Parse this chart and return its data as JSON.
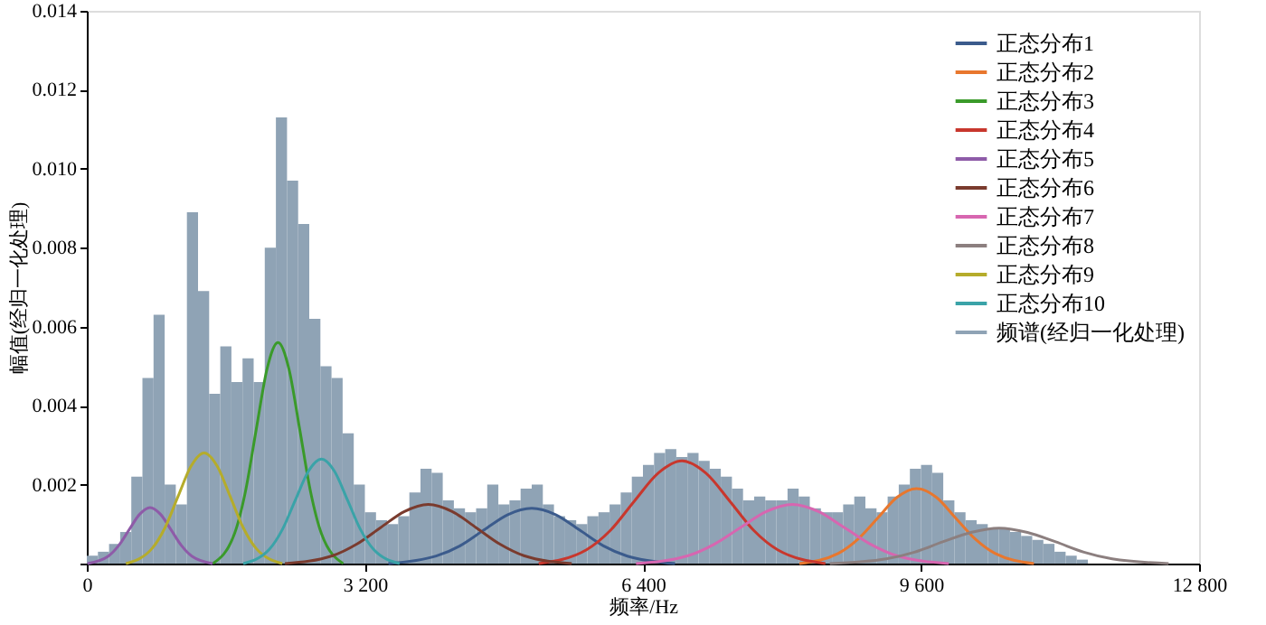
{
  "chart_data": {
    "type": "line",
    "xlabel": "频率/Hz",
    "ylabel": "幅值(经归一化处理)",
    "xlim": [
      0,
      12800
    ],
    "xticks": [
      {
        "value": 0,
        "label": "0"
      },
      {
        "value": 3200,
        "label": "3 200"
      },
      {
        "value": 6400,
        "label": "6 400"
      },
      {
        "value": 9600,
        "label": "9 600"
      },
      {
        "value": 12800,
        "label": "12 800"
      }
    ],
    "ylim": [
      0,
      0.014
    ],
    "yticks": [
      {
        "value": 0,
        "label": null
      },
      0.002,
      0.004,
      0.006,
      0.008,
      {
        "value": 0.01,
        "label": "0.010"
      },
      0.012,
      0.014
    ],
    "grid": false,
    "legend": "top right",
    "marker": "none",
    "line_style": "solid",
    "series": [
      {
        "name": "正态分布1",
        "color": "#3b5b8c",
        "x": [
          3470,
          4020,
          4295,
          4570,
          4845,
          5120,
          5395,
          5670,
          5945,
          6220,
          6770
        ],
        "values": [
          0,
          0.00019,
          0.00045,
          0.00085,
          0.00124,
          0.0014,
          0.00124,
          0.00085,
          0.00045,
          0.00019,
          0
        ]
      },
      {
        "name": "正态分布2",
        "color": "#e8772e",
        "x": [
          8200,
          8650,
          8875,
          9100,
          9325,
          9550,
          9775,
          10000,
          10225,
          10450,
          10900
        ],
        "values": [
          0,
          0.00026,
          0.00062,
          0.00115,
          0.00168,
          0.0019,
          0.00168,
          0.00115,
          0.00062,
          0.00026,
          0
        ]
      },
      {
        "name": "正态分布3",
        "color": "#3a9a2a",
        "x": [
          1450,
          1700,
          1825,
          1950,
          2075,
          2200,
          2325,
          2450,
          2575,
          2700,
          2950
        ],
        "values": [
          0,
          0.00076,
          0.00182,
          0.0034,
          0.00494,
          0.0056,
          0.00494,
          0.0034,
          0.00182,
          0.00076,
          0
        ]
      },
      {
        "name": "正态分布4",
        "color": "#c8372d",
        "x": [
          5200,
          5750,
          6025,
          6300,
          6575,
          6850,
          7125,
          7400,
          7675,
          7950,
          8500
        ],
        "values": [
          0,
          0.00035,
          0.00084,
          0.00158,
          0.00229,
          0.0026,
          0.00229,
          0.00158,
          0.00084,
          0.00035,
          0
        ]
      },
      {
        "name": "正态分布5",
        "color": "#8e5ba8",
        "x": [
          8,
          248,
          368,
          488,
          608,
          728,
          848,
          968,
          1088,
          1208,
          1448
        ],
        "values": [
          0,
          0.00019,
          0.00046,
          0.00086,
          0.00125,
          0.00142,
          0.00125,
          0.00086,
          0.00046,
          0.00019,
          0
        ]
      },
      {
        "name": "正态分布6",
        "color": "#7a3b2e",
        "x": [
          2280,
          2830,
          3105,
          3380,
          3655,
          3930,
          4205,
          4480,
          4755,
          5030,
          5580
        ],
        "values": [
          0,
          0.0002,
          0.00049,
          0.00091,
          0.00132,
          0.0015,
          0.00132,
          0.00091,
          0.00049,
          0.0002,
          0
        ]
      },
      {
        "name": "正态分布7",
        "color": "#d766b0",
        "x": [
          6320,
          6920,
          7220,
          7520,
          7820,
          8120,
          8420,
          8720,
          9020,
          9320,
          9920
        ],
        "values": [
          0,
          0.0002,
          0.00049,
          0.00091,
          0.00132,
          0.0015,
          0.00132,
          0.00091,
          0.00049,
          0.0002,
          0
        ]
      },
      {
        "name": "正态分布8",
        "color": "#8c7f7f",
        "x": [
          8550,
          9200,
          9525,
          9850,
          10175,
          10500,
          10825,
          11150,
          11475,
          11800,
          12450
        ],
        "values": [
          0,
          0.00012,
          0.00029,
          0.00055,
          0.00079,
          0.0009,
          0.00079,
          0.00055,
          0.00029,
          0.00012,
          0
        ]
      },
      {
        "name": "正态分布9",
        "color": "#b5ac2b",
        "x": [
          450,
          750,
          900,
          1050,
          1200,
          1350,
          1500,
          1650,
          1800,
          1950,
          2250
        ],
        "values": [
          0,
          0.00038,
          0.00091,
          0.0017,
          0.00247,
          0.0028,
          0.00247,
          0.0017,
          0.00091,
          0.00038,
          0
        ]
      },
      {
        "name": "正态分布10",
        "color": "#3aa3a8",
        "x": [
          1800,
          2100,
          2250,
          2400,
          2550,
          2700,
          2850,
          3000,
          3150,
          3300,
          3600
        ],
        "values": [
          0,
          0.00036,
          0.00086,
          0.00161,
          0.00234,
          0.00265,
          0.00234,
          0.00161,
          0.00086,
          0.00036,
          0
        ]
      },
      {
        "name": "频谱(经归一化处理)",
        "type": "histogram",
        "color": "#8fa3b5",
        "bins": [
          0,
          128,
          256,
          384,
          512,
          640,
          768,
          896,
          1024,
          1152,
          1280,
          1408,
          1536,
          1664,
          1792,
          1920,
          2048,
          2176,
          2304,
          2432,
          2560,
          2688,
          2816,
          2944,
          3072,
          3200,
          3328,
          3456,
          3584,
          3712,
          3840,
          3968,
          4096,
          4224,
          4352,
          4480,
          4608,
          4736,
          4864,
          4992,
          5120,
          5248,
          5376,
          5504,
          5632,
          5760,
          5888,
          6016,
          6144,
          6272,
          6400,
          6528,
          6656,
          6784,
          6912,
          7040,
          7168,
          7296,
          7424,
          7552,
          7680,
          7808,
          7936,
          8064,
          8192,
          8320,
          8448,
          8576,
          8704,
          8832,
          8960,
          9088,
          9216,
          9344,
          9472,
          9600,
          9728,
          9856,
          9984,
          10112,
          10240,
          10368,
          10496,
          10624,
          10752,
          10880,
          11008,
          11136,
          11264,
          11392,
          11520,
          11648,
          11776,
          11904,
          12032,
          12160,
          12288,
          12416,
          12544,
          12672,
          12800
        ],
        "values": [
          0.0002,
          0.0003,
          0.0005,
          0.0008,
          0.0022,
          0.0047,
          0.0063,
          0.002,
          0.0015,
          0.0089,
          0.0069,
          0.0043,
          0.0055,
          0.0046,
          0.0052,
          0.0046,
          0.008,
          0.0113,
          0.0097,
          0.0086,
          0.0062,
          0.005,
          0.0047,
          0.0033,
          0.002,
          0.0013,
          0.0011,
          0.001,
          0.0012,
          0.0018,
          0.0024,
          0.0023,
          0.0016,
          0.0014,
          0.0013,
          0.0014,
          0.002,
          0.0015,
          0.0016,
          0.0019,
          0.002,
          0.0015,
          0.0012,
          0.0011,
          0.001,
          0.0012,
          0.0013,
          0.0015,
          0.0018,
          0.0022,
          0.0025,
          0.0028,
          0.0029,
          0.0027,
          0.0028,
          0.0026,
          0.0024,
          0.0022,
          0.0019,
          0.0016,
          0.0017,
          0.0016,
          0.0016,
          0.0019,
          0.0017,
          0.0014,
          0.0013,
          0.0013,
          0.0015,
          0.0017,
          0.0014,
          0.0013,
          0.0017,
          0.002,
          0.0024,
          0.0025,
          0.0023,
          0.0016,
          0.0013,
          0.0011,
          0.001,
          0.0009,
          0.0009,
          0.0008,
          0.0007,
          0.0006,
          0.0005,
          0.0003,
          0.0002,
          0.0001,
          0,
          0,
          0,
          0,
          0,
          0,
          0,
          0,
          0,
          0
        ]
      }
    ]
  }
}
